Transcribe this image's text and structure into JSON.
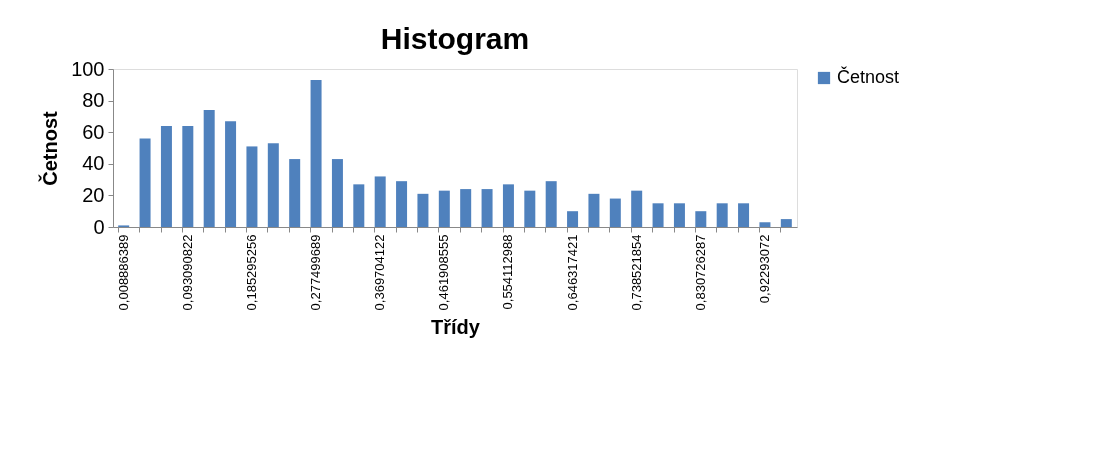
{
  "chart_data": {
    "type": "bar",
    "title": "Histogram",
    "xlabel": "Třídy",
    "ylabel": "Četnost",
    "categories": [
      "0,008886389",
      null,
      null,
      "0,093090822",
      null,
      null,
      "0,185295256",
      null,
      null,
      "0,277499689",
      null,
      null,
      "0,369704122",
      null,
      null,
      "0,461908555",
      null,
      null,
      "0,554112988",
      null,
      null,
      "0,646317421",
      null,
      null,
      "0,738521854",
      null,
      null,
      "0,830726287",
      null,
      null,
      "0,92293072",
      null
    ],
    "series": [
      {
        "name": "Četnost",
        "color": "#4f81bd",
        "values": [
          1,
          56,
          64,
          64,
          74,
          67,
          51,
          53,
          43,
          93,
          43,
          27,
          32,
          29,
          21,
          23,
          24,
          24,
          27,
          23,
          29,
          10,
          21,
          18,
          23,
          15,
          15,
          10,
          15,
          15,
          3,
          5
        ]
      }
    ],
    "ylim": [
      0,
      100
    ],
    "yticks": [
      0,
      20,
      40,
      60,
      80,
      100
    ],
    "grid": false,
    "legend": "right"
  }
}
